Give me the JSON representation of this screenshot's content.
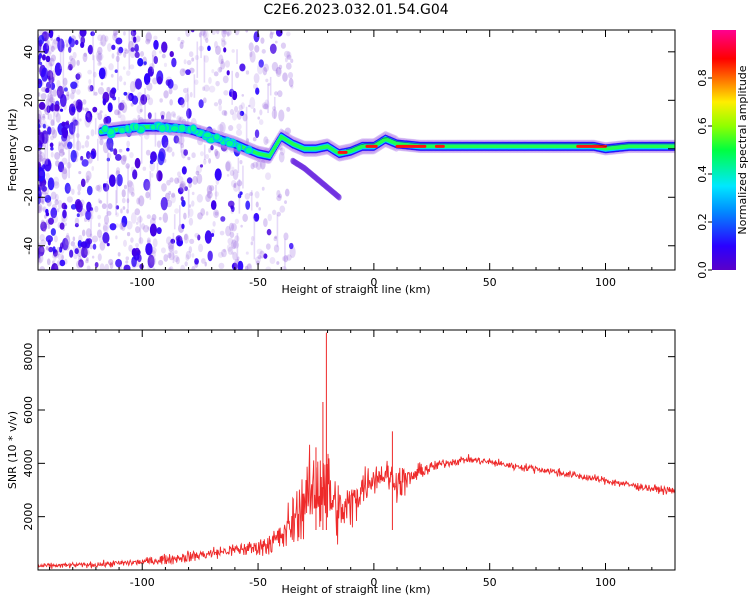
{
  "chart_data": [
    {
      "type": "heatmap",
      "title": "C2E6.2023.032.01.54.G04",
      "xlabel": "Height of straight line (km)",
      "ylabel": "Frequency (Hz)",
      "xlim": [
        -145,
        130
      ],
      "ylim": [
        -50,
        49
      ],
      "xticks": [
        -100,
        -50,
        0,
        50,
        100
      ],
      "yticks": [
        -40,
        -20,
        0,
        20,
        40
      ],
      "grid": false,
      "colorbar": {
        "label": "Normalized spectral amplitude",
        "range": [
          0,
          1
        ],
        "ticks": [
          "0.0",
          "0.2",
          "0.4",
          "0.6",
          "0.8"
        ],
        "colormap": "rainbow (purple-blue-cyan-green-yellow-red-magenta)"
      },
      "ridge": {
        "x": [
          -118,
          -110,
          -100,
          -90,
          -80,
          -70,
          -60,
          -50,
          -45,
          -40,
          -35,
          -30,
          -25,
          -20,
          -15,
          -10,
          -5,
          0,
          5,
          10,
          20,
          40,
          60,
          80,
          95,
          100,
          110,
          130
        ],
        "y": [
          7,
          8,
          9,
          9,
          8,
          5,
          2,
          -2,
          -3,
          5,
          2,
          0,
          0,
          1,
          -2,
          -1,
          1,
          1,
          4,
          2,
          1,
          1,
          1,
          1,
          1,
          0,
          1,
          1
        ]
      },
      "branch": {
        "x": [
          -35,
          -30,
          -25,
          -20,
          -15
        ],
        "y": [
          -5,
          -8,
          -12,
          -16,
          -20
        ]
      }
    },
    {
      "type": "line",
      "title": "",
      "xlabel": "Height of straight line (km)",
      "ylabel": "SNR (10 * v/v)",
      "xlim": [
        -145,
        130
      ],
      "ylim": [
        0,
        9000
      ],
      "xticks": [
        -100,
        -50,
        0,
        50,
        100
      ],
      "yticks": [
        2000,
        4000,
        6000,
        8000
      ],
      "grid": false,
      "series": [
        {
          "color": "#ee2a2a",
          "x": [
            -145,
            -120,
            -100,
            -80,
            -60,
            -50,
            -40,
            -35,
            -30,
            -25,
            -22,
            -20,
            -18,
            -15,
            -10,
            -5,
            0,
            5,
            10,
            15,
            20,
            30,
            40,
            50,
            60,
            70,
            80,
            90,
            100,
            110,
            120,
            130
          ],
          "mean": [
            150,
            200,
            300,
            500,
            750,
            850,
            1200,
            1800,
            2600,
            3000,
            3400,
            3100,
            2600,
            2100,
            2400,
            3100,
            3500,
            3600,
            3300,
            3400,
            3700,
            4000,
            4150,
            4050,
            3900,
            3800,
            3650,
            3500,
            3350,
            3200,
            3050,
            2950
          ],
          "spread": [
            120,
            150,
            200,
            300,
            350,
            450,
            900,
            1400,
            1800,
            2200,
            3000,
            2400,
            1800,
            1500,
            1300,
            1000,
            800,
            800,
            900,
            700,
            400,
            250,
            200,
            200,
            200,
            200,
            200,
            200,
            200,
            200,
            200,
            200
          ]
        }
      ],
      "annotations": [
        {
          "x": -20.5,
          "y": 8900
        },
        {
          "x": -22,
          "y": 6300
        },
        {
          "x": -25,
          "y": 4600
        },
        {
          "x": 8,
          "y": 5200
        }
      ]
    }
  ]
}
